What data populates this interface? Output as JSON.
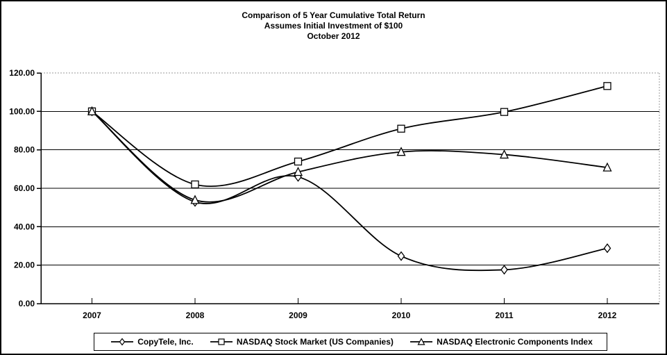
{
  "title": {
    "line1": "Comparison of 5 Year Cumulative Total Return",
    "line2": "Assumes Initial Investment of $100",
    "line3": "October 2012"
  },
  "chart_data": {
    "type": "line",
    "smooth": true,
    "categories": [
      "2007",
      "2008",
      "2009",
      "2010",
      "2011",
      "2012"
    ],
    "series": [
      {
        "name": "CopyTele, Inc.",
        "marker": "diamond",
        "color": "#000000",
        "values": [
          100.0,
          52.9,
          65.9,
          24.7,
          17.6,
          28.8
        ]
      },
      {
        "name": "NASDAQ Stock Market (US Companies)",
        "marker": "square",
        "color": "#000000",
        "values": [
          100.0,
          62.0,
          73.9,
          91.0,
          99.7,
          113.2
        ]
      },
      {
        "name": "NASDAQ Electronic Components Index",
        "marker": "triangle",
        "color": "#000000",
        "values": [
          100.0,
          53.9,
          68.5,
          78.9,
          77.5,
          70.8
        ]
      }
    ],
    "y_ticks": [
      "120.00",
      "100.00",
      "80.00",
      "60.00",
      "40.00",
      "20.00",
      "0.00"
    ],
    "ylim": [
      0,
      120
    ],
    "xlabel": "",
    "ylabel": "",
    "grid": "horizontal",
    "legend_position": "bottom",
    "axis_color": "#000000",
    "frame_color": "#999999",
    "marker_fill": "#ffffff"
  }
}
